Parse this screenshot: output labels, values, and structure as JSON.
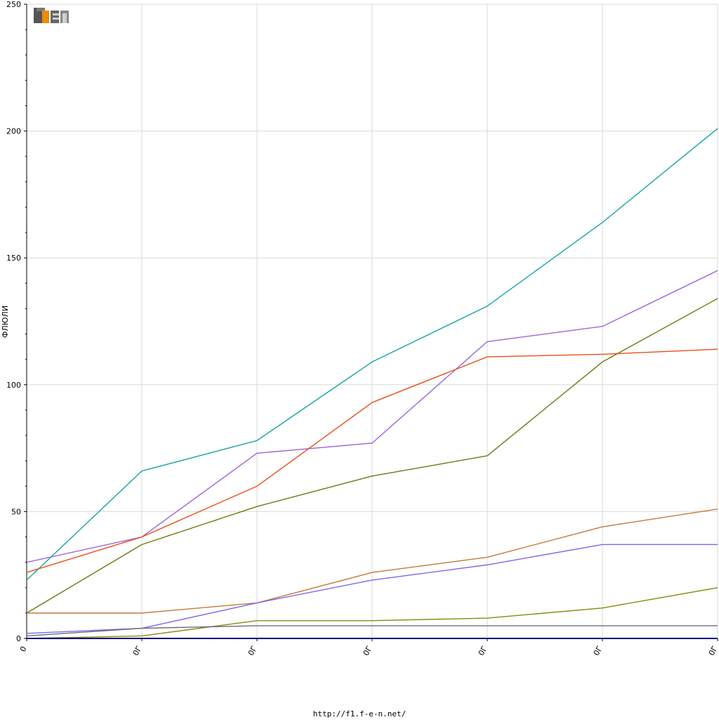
{
  "logo": {
    "text": "F1EN"
  },
  "footer": {
    "url": "http://f1.f-e-n.net/"
  },
  "chart_data": {
    "type": "line",
    "ylabel": "ФЛЮЛИ",
    "xlabel": "",
    "title": "",
    "ylim": [
      0,
      250
    ],
    "yticks": [
      0,
      50,
      100,
      150,
      200,
      250
    ],
    "grid": true,
    "categories": [
      "0",
      "0Γ",
      "0Γ",
      "0Γ",
      "0Γ",
      "0Γ",
      "0Γ"
    ],
    "series": [
      {
        "color": "#1aa3a3",
        "values": [
          23,
          66,
          78,
          109,
          131,
          164,
          201
        ]
      },
      {
        "color": "#9b66d9",
        "values": [
          30,
          40,
          73,
          77,
          117,
          123,
          145
        ]
      },
      {
        "color": "#6b7a10",
        "values": [
          10,
          37,
          52,
          64,
          72,
          109,
          134
        ]
      },
      {
        "color": "#e8501a",
        "values": [
          26,
          40,
          60,
          93,
          111,
          112,
          114
        ]
      },
      {
        "color": "#c07a40",
        "values": [
          10,
          10,
          14,
          26,
          32,
          44,
          51
        ]
      },
      {
        "color": "#7b68ee",
        "values": [
          2,
          4,
          14,
          23,
          29,
          37,
          37
        ]
      },
      {
        "color": "#8a8a10",
        "values": [
          0,
          1,
          7,
          7,
          8,
          12,
          20
        ]
      },
      {
        "color": "#6a6a80",
        "values": [
          1,
          4,
          5,
          5,
          5,
          5,
          5
        ]
      },
      {
        "color": "#000080",
        "values": [
          0,
          0,
          0,
          0,
          0,
          0,
          0
        ]
      }
    ]
  }
}
